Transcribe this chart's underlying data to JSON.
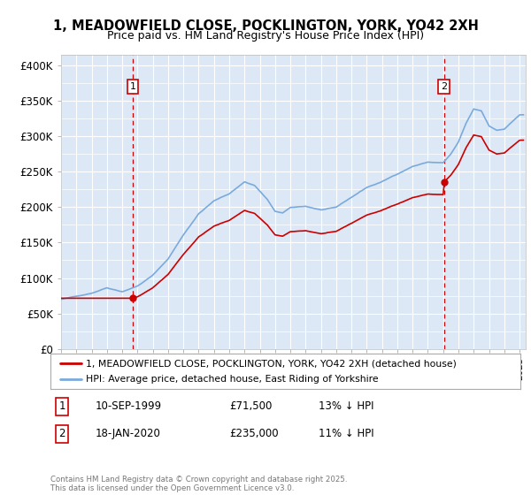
{
  "title": "1, MEADOWFIELD CLOSE, POCKLINGTON, YORK, YO42 2XH",
  "subtitle": "Price paid vs. HM Land Registry's House Price Index (HPI)",
  "ylabel_ticks": [
    "£0",
    "£50K",
    "£100K",
    "£150K",
    "£200K",
    "£250K",
    "£300K",
    "£350K",
    "£400K"
  ],
  "ytick_vals": [
    0,
    50000,
    100000,
    150000,
    200000,
    250000,
    300000,
    350000,
    400000
  ],
  "ylim": [
    0,
    415000
  ],
  "legend_line1": "1, MEADOWFIELD CLOSE, POCKLINGTON, YORK, YO42 2XH (detached house)",
  "legend_line2": "HPI: Average price, detached house, East Riding of Yorkshire",
  "annotation1_date": "10-SEP-1999",
  "annotation1_price": "£71,500",
  "annotation1_hpi": "13% ↓ HPI",
  "annotation2_date": "18-JAN-2020",
  "annotation2_price": "£235,000",
  "annotation2_hpi": "11% ↓ HPI",
  "footer": "Contains HM Land Registry data © Crown copyright and database right 2025.\nThis data is licensed under the Open Government Licence v3.0.",
  "sale1_year": 1999.7,
  "sale1_price": 71500,
  "sale2_year": 2020.05,
  "sale2_price": 235000,
  "hpi_color": "#7aaadd",
  "sale_color": "#cc0000",
  "bg_color": "#dce8f5",
  "grid_color": "#ffffff"
}
